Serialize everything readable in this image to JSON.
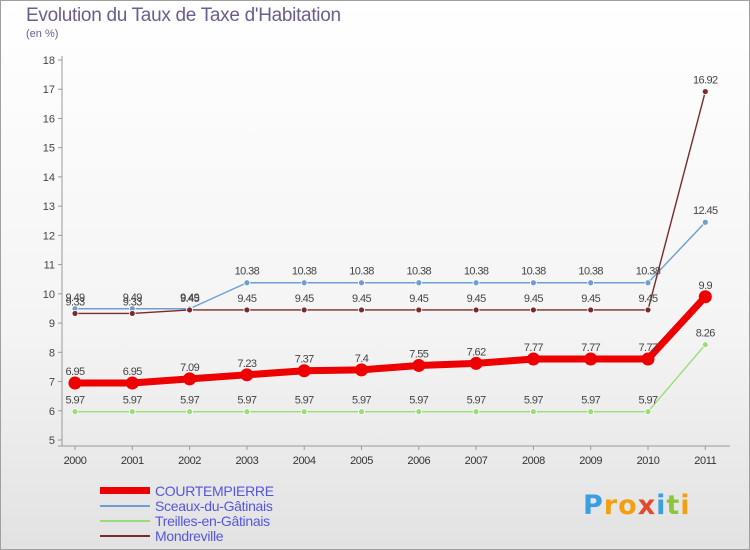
{
  "title": "Evolution du Taux de Taxe d'Habitation",
  "unit": "(en %)",
  "logo": {
    "letters": [
      "P",
      "r",
      "o",
      "x",
      "i",
      "t",
      "i"
    ],
    "colors": [
      "#3a9ee0",
      "#f2a012",
      "#f2a012",
      "#e04a2a",
      "#3a9ee0",
      "#8cc63f",
      "#f2a012"
    ]
  },
  "chart_data": {
    "type": "line",
    "x": [
      "2000",
      "2001",
      "2002",
      "2003",
      "2004",
      "2005",
      "2006",
      "2007",
      "2008",
      "2009",
      "2010",
      "2011"
    ],
    "ylim": [
      5,
      18
    ],
    "yticks": [
      5,
      6,
      7,
      8,
      9,
      10,
      11,
      12,
      13,
      14,
      15,
      16,
      17,
      18
    ],
    "grid": false,
    "legend_position": "bottom-left",
    "series": [
      {
        "name": "COURTEMPIERRE",
        "color": "#ee0000",
        "values": [
          6.95,
          6.95,
          7.09,
          7.23,
          7.37,
          7.4,
          7.55,
          7.62,
          7.77,
          7.77,
          7.77,
          9.9
        ],
        "labels": [
          "6.95",
          "6.95",
          "7.09",
          "7.23",
          "7.37",
          "7.4",
          "7.55",
          "7.62",
          "7.77",
          "7.77",
          "7.77",
          "9.9"
        ]
      },
      {
        "name": "Sceaux-du-Gâtinais",
        "color": "#6d9ed4",
        "values": [
          9.49,
          9.49,
          9.49,
          10.38,
          10.38,
          10.38,
          10.38,
          10.38,
          10.38,
          10.38,
          10.38,
          12.45
        ],
        "labels": [
          "9.49",
          "9.49",
          "9.49",
          "10.38",
          "10.38",
          "10.38",
          "10.38",
          "10.38",
          "10.38",
          "10.38",
          "10.38",
          "12.45"
        ]
      },
      {
        "name": "Treilles-en-Gâtinais",
        "color": "#99dd77",
        "values": [
          5.97,
          5.97,
          5.97,
          5.97,
          5.97,
          5.97,
          5.97,
          5.97,
          5.97,
          5.97,
          5.97,
          8.26
        ],
        "labels": [
          "5.97",
          "5.97",
          "5.97",
          "5.97",
          "5.97",
          "5.97",
          "5.97",
          "5.97",
          "5.97",
          "5.97",
          "5.97",
          "8.26"
        ]
      },
      {
        "name": "Mondreville",
        "color": "#7a2a2a",
        "values": [
          9.33,
          9.33,
          9.45,
          9.45,
          9.45,
          9.45,
          9.45,
          9.45,
          9.45,
          9.45,
          9.45,
          16.92
        ],
        "labels": [
          "9.33",
          "9.33",
          "9.45",
          "9.45",
          "9.45",
          "9.45",
          "9.45",
          "9.45",
          "9.45",
          "9.45",
          "9.45",
          "16.92"
        ]
      }
    ]
  }
}
